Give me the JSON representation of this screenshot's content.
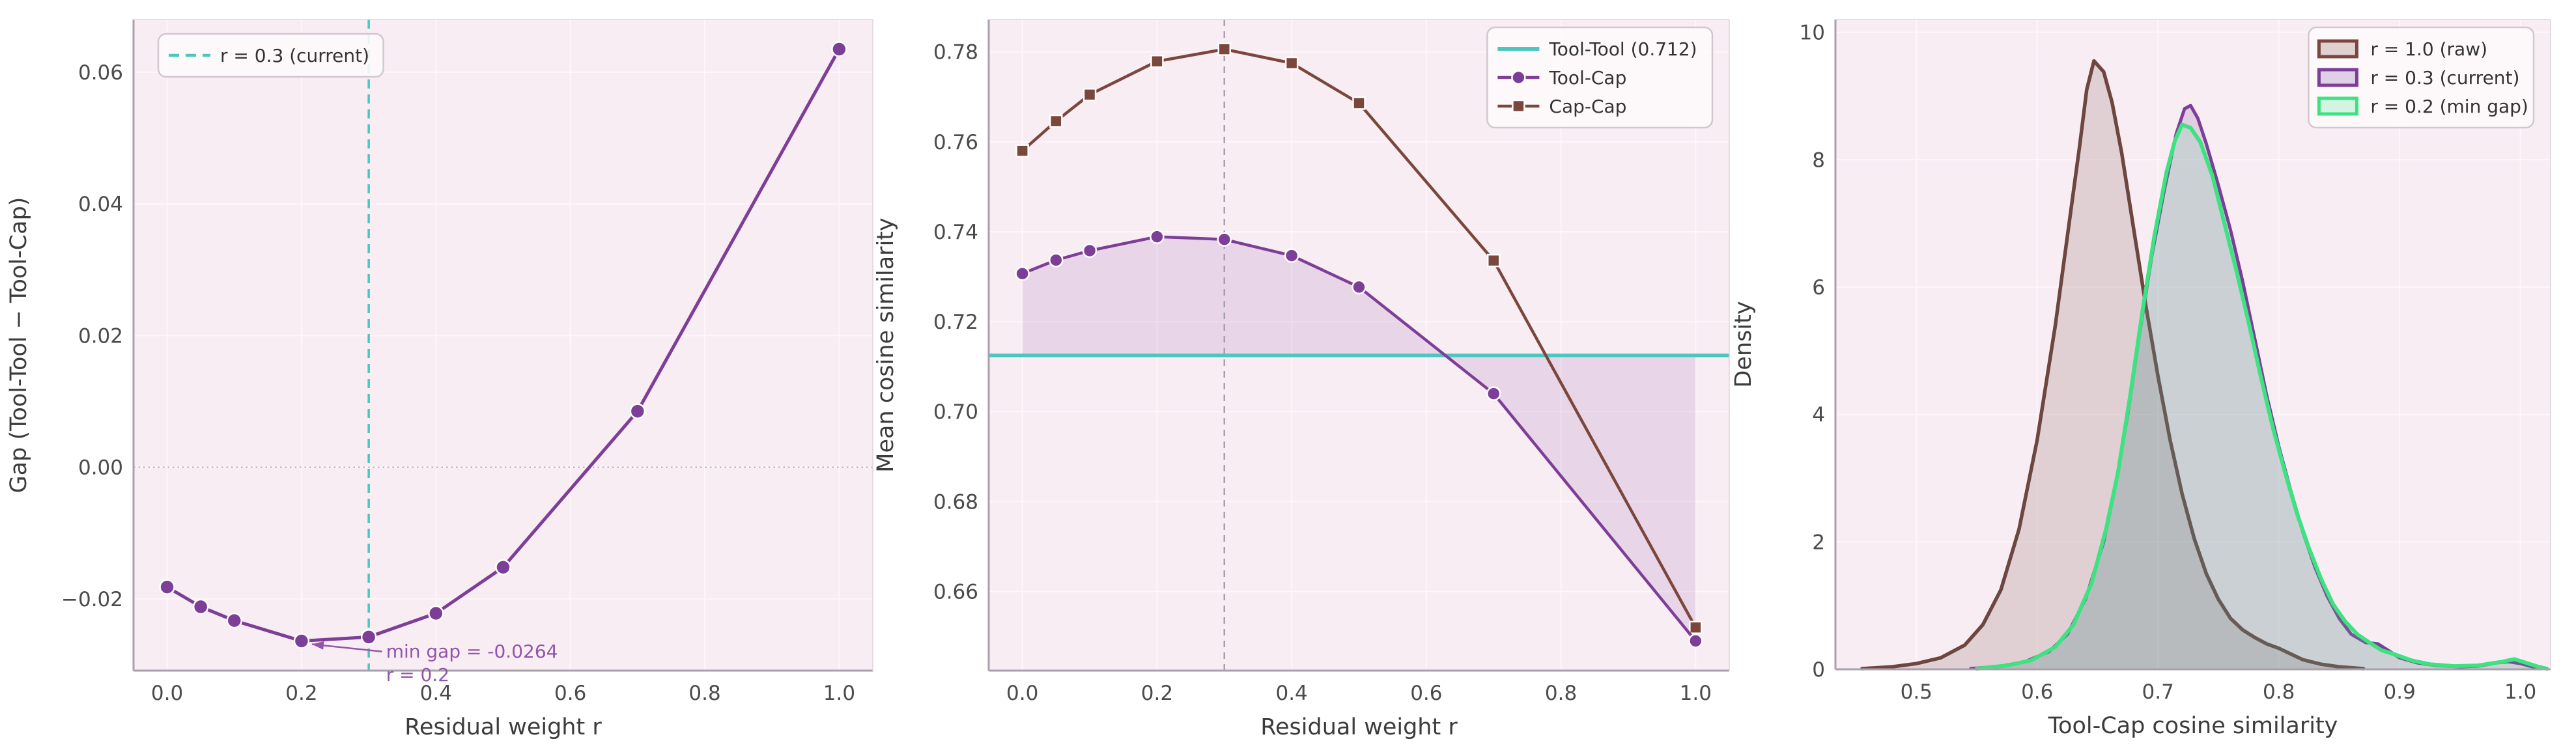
{
  "figure": {
    "background": "#ffffff",
    "plot_background": "#f9edf4",
    "grid_color": "#fdf6fa",
    "spine_dark": "#a8a0ac",
    "spine_light": "#ddd3dd",
    "tick_color": "#4b4b4b",
    "label_color": "#3c3c3c",
    "legend_bg": "#fdfafc",
    "legend_border": "#cfc8cf"
  },
  "colors": {
    "teal": "#4cc6bf",
    "purple": "#7d3e97",
    "brown": "#7b463b",
    "brown_kde": "#6d463f",
    "green": "#3ce380",
    "gray_dash": "#a79fa9",
    "zero_dotted": "#b3aab3",
    "annotation_purple": "#9355a8"
  },
  "chart_data": [
    {
      "type": "line",
      "name": "gap-vs-residual-weight",
      "xlabel": "Residual weight r",
      "ylabel": "Gap (Tool-Tool − Tool-Cap)",
      "xlim": [
        -0.05,
        1.05
      ],
      "ylim": [
        -0.0309,
        0.068
      ],
      "xticks": {
        "values": [
          0.0,
          0.2,
          0.4,
          0.6,
          0.8,
          1.0
        ],
        "labels": [
          "0.0",
          "0.2",
          "0.4",
          "0.6",
          "0.8",
          "1.0"
        ]
      },
      "yticks": {
        "values": [
          -0.02,
          0.0,
          0.02,
          0.04,
          0.06
        ],
        "labels": [
          "−0.02",
          "0.00",
          "0.02",
          "0.04",
          "0.06"
        ]
      },
      "grid": true,
      "zero_line": true,
      "vlines": [
        {
          "x": 0.3,
          "color": "#4cc6bf",
          "width": 3.5,
          "dash": "14 9"
        }
      ],
      "series": [
        {
          "id": "gap",
          "color": "#7d3e97",
          "marker": "circle",
          "marker_r": 11,
          "line_width": 5,
          "x": [
            0.0,
            0.05,
            0.1,
            0.2,
            0.3,
            0.4,
            0.5,
            0.7,
            1.0
          ],
          "y": [
            -0.0182,
            -0.0212,
            -0.0233,
            -0.0264,
            -0.0258,
            -0.0222,
            -0.0152,
            0.0085,
            0.0635
          ]
        }
      ],
      "legend": {
        "pos": "ul",
        "items": [
          {
            "kind": "dash",
            "color": "#4cc6bf",
            "label": "r = 0.3 (current)"
          }
        ]
      },
      "annotation": {
        "text_lines": [
          "min gap = -0.0264",
          "r = 0.2"
        ],
        "x": 0.318,
        "y": -0.0289,
        "target": {
          "x": 0.2,
          "y": -0.0264
        },
        "color": "#9355a8"
      }
    },
    {
      "type": "line",
      "name": "mean-cosine-similarity-vs-residual-weight",
      "xlabel": "Residual weight r",
      "ylabel": "Mean cosine similarity",
      "xlim": [
        -0.05,
        1.05
      ],
      "ylim": [
        0.6424,
        0.7872
      ],
      "xticks": {
        "values": [
          0.0,
          0.2,
          0.4,
          0.6,
          0.8,
          1.0
        ],
        "labels": [
          "0.0",
          "0.2",
          "0.4",
          "0.6",
          "0.8",
          "1.0"
        ]
      },
      "yticks": {
        "values": [
          0.66,
          0.68,
          0.7,
          0.72,
          0.74,
          0.76,
          0.78
        ],
        "labels": [
          "0.66",
          "0.68",
          "0.70",
          "0.72",
          "0.74",
          "0.76",
          "0.78"
        ]
      },
      "grid": true,
      "hline": {
        "y": 0.7125,
        "color": "#4cc6bf",
        "width": 5.5,
        "label": "Tool-Tool (0.712)"
      },
      "vlines": [
        {
          "x": 0.3,
          "color": "#a79fa9",
          "width": 2.5,
          "dash": "10 8"
        }
      ],
      "fill_between": {
        "series": "toolcap",
        "to": 0.7125,
        "color": "#7d3e97",
        "opacity": 0.13
      },
      "series": [
        {
          "id": "capcap",
          "label": "Cap-Cap",
          "color": "#7b463b",
          "marker": "square",
          "marker_r": 9,
          "line_width": 4.5,
          "x": [
            0.0,
            0.05,
            0.1,
            0.2,
            0.3,
            0.4,
            0.5,
            0.7,
            1.0
          ],
          "y": [
            0.758,
            0.7646,
            0.7705,
            0.7779,
            0.7806,
            0.7775,
            0.7686,
            0.7336,
            0.652
          ]
        },
        {
          "id": "toolcap",
          "label": "Tool-Cap",
          "color": "#7d3e97",
          "marker": "circle",
          "marker_r": 10,
          "line_width": 4.5,
          "x": [
            0.0,
            0.05,
            0.1,
            0.2,
            0.3,
            0.4,
            0.5,
            0.7,
            1.0
          ],
          "y": [
            0.7307,
            0.7337,
            0.7358,
            0.7389,
            0.7383,
            0.7347,
            0.7277,
            0.704,
            0.649
          ]
        }
      ],
      "legend": {
        "pos": "ur",
        "items": [
          {
            "kind": "line",
            "color": "#4cc6bf",
            "label": "Tool-Tool (0.712)"
          },
          {
            "kind": "line-circle",
            "color": "#7d3e97",
            "label": "Tool-Cap"
          },
          {
            "kind": "line-square",
            "color": "#7b463b",
            "label": "Cap-Cap"
          }
        ]
      }
    },
    {
      "type": "area",
      "name": "tool-cap-similarity-density",
      "xlabel": "Tool-Cap cosine similarity",
      "ylabel": "Density",
      "xlim": [
        0.433,
        1.025
      ],
      "ylim": [
        0,
        10.2
      ],
      "xticks": {
        "values": [
          0.5,
          0.6,
          0.7,
          0.8,
          0.9,
          1.0
        ],
        "labels": [
          "0.5",
          "0.6",
          "0.7",
          "0.8",
          "0.9",
          "1.0"
        ]
      },
      "yticks": {
        "values": [
          0,
          2,
          4,
          6,
          8,
          10
        ],
        "labels": [
          "0",
          "2",
          "4",
          "6",
          "8",
          "10"
        ]
      },
      "grid": true,
      "kde": [
        {
          "label": "r = 1.0 (raw)",
          "color": "#6d463f",
          "stroke_width": 5.5,
          "fill_opacity": 0.18,
          "points": [
            [
              0.455,
              0.01
            ],
            [
              0.48,
              0.04
            ],
            [
              0.5,
              0.09
            ],
            [
              0.52,
              0.18
            ],
            [
              0.54,
              0.38
            ],
            [
              0.555,
              0.7
            ],
            [
              0.57,
              1.25
            ],
            [
              0.585,
              2.2
            ],
            [
              0.6,
              3.6
            ],
            [
              0.615,
              5.4
            ],
            [
              0.625,
              6.8
            ],
            [
              0.635,
              8.2
            ],
            [
              0.641,
              9.1
            ],
            [
              0.647,
              9.55
            ],
            [
              0.655,
              9.38
            ],
            [
              0.662,
              8.9
            ],
            [
              0.67,
              8.1
            ],
            [
              0.68,
              6.9
            ],
            [
              0.69,
              5.7
            ],
            [
              0.7,
              4.6
            ],
            [
              0.71,
              3.6
            ],
            [
              0.72,
              2.75
            ],
            [
              0.73,
              2.05
            ],
            [
              0.74,
              1.5
            ],
            [
              0.75,
              1.1
            ],
            [
              0.76,
              0.8
            ],
            [
              0.77,
              0.62
            ],
            [
              0.78,
              0.5
            ],
            [
              0.79,
              0.4
            ],
            [
              0.8,
              0.33
            ],
            [
              0.81,
              0.24
            ],
            [
              0.82,
              0.15
            ],
            [
              0.835,
              0.08
            ],
            [
              0.85,
              0.04
            ],
            [
              0.87,
              0.01
            ]
          ]
        },
        {
          "label": "r = 0.3 (current)",
          "color": "#7d3e97",
          "stroke_width": 5,
          "fill_opacity": 0.18,
          "points": [
            [
              0.545,
              0.01
            ],
            [
              0.57,
              0.05
            ],
            [
              0.59,
              0.12
            ],
            [
              0.61,
              0.28
            ],
            [
              0.625,
              0.55
            ],
            [
              0.64,
              1.1
            ],
            [
              0.655,
              2.0
            ],
            [
              0.665,
              2.9
            ],
            [
              0.675,
              4.0
            ],
            [
              0.685,
              5.3
            ],
            [
              0.695,
              6.5
            ],
            [
              0.705,
              7.5
            ],
            [
              0.715,
              8.4
            ],
            [
              0.722,
              8.8
            ],
            [
              0.727,
              8.85
            ],
            [
              0.733,
              8.65
            ],
            [
              0.74,
              8.25
            ],
            [
              0.75,
              7.6
            ],
            [
              0.76,
              6.9
            ],
            [
              0.77,
              6.1
            ],
            [
              0.78,
              5.2
            ],
            [
              0.79,
              4.3
            ],
            [
              0.8,
              3.5
            ],
            [
              0.81,
              2.8
            ],
            [
              0.82,
              2.15
            ],
            [
              0.83,
              1.6
            ],
            [
              0.84,
              1.15
            ],
            [
              0.85,
              0.8
            ],
            [
              0.86,
              0.55
            ],
            [
              0.872,
              0.42
            ],
            [
              0.882,
              0.4
            ],
            [
              0.892,
              0.28
            ],
            [
              0.9,
              0.18
            ],
            [
              0.915,
              0.1
            ],
            [
              0.93,
              0.06
            ],
            [
              0.95,
              0.04
            ],
            [
              0.965,
              0.05
            ],
            [
              0.98,
              0.1
            ],
            [
              0.99,
              0.12
            ],
            [
              1.0,
              0.09
            ],
            [
              1.01,
              0.04
            ],
            [
              1.02,
              0.01
            ]
          ]
        },
        {
          "label": "r = 0.2 (min gap)",
          "color": "#3ce380",
          "stroke_width": 6,
          "fill_opacity": 0.15,
          "points": [
            [
              0.55,
              0.01
            ],
            [
              0.575,
              0.06
            ],
            [
              0.595,
              0.14
            ],
            [
              0.615,
              0.35
            ],
            [
              0.63,
              0.7
            ],
            [
              0.645,
              1.35
            ],
            [
              0.657,
              2.2
            ],
            [
              0.667,
              3.1
            ],
            [
              0.677,
              4.3
            ],
            [
              0.687,
              5.6
            ],
            [
              0.697,
              6.8
            ],
            [
              0.707,
              7.8
            ],
            [
              0.714,
              8.3
            ],
            [
              0.72,
              8.55
            ],
            [
              0.727,
              8.5
            ],
            [
              0.735,
              8.28
            ],
            [
              0.745,
              7.75
            ],
            [
              0.755,
              7.0
            ],
            [
              0.765,
              6.25
            ],
            [
              0.775,
              5.45
            ],
            [
              0.785,
              4.6
            ],
            [
              0.795,
              3.8
            ],
            [
              0.805,
              3.1
            ],
            [
              0.815,
              2.45
            ],
            [
              0.825,
              1.9
            ],
            [
              0.835,
              1.42
            ],
            [
              0.845,
              1.02
            ],
            [
              0.855,
              0.75
            ],
            [
              0.865,
              0.55
            ],
            [
              0.875,
              0.42
            ],
            [
              0.885,
              0.3
            ],
            [
              0.895,
              0.24
            ],
            [
              0.91,
              0.14
            ],
            [
              0.925,
              0.08
            ],
            [
              0.945,
              0.05
            ],
            [
              0.965,
              0.06
            ],
            [
              0.985,
              0.12
            ],
            [
              0.995,
              0.16
            ],
            [
              1.005,
              0.1
            ],
            [
              1.015,
              0.04
            ],
            [
              1.022,
              0.01
            ]
          ]
        }
      ],
      "legend": {
        "pos": "ur",
        "items": [
          {
            "kind": "patch",
            "color": "#7b463b",
            "label": "r = 1.0 (raw)"
          },
          {
            "kind": "patch",
            "color": "#7d3e97",
            "label": "r = 0.3 (current)"
          },
          {
            "kind": "patch",
            "color": "#3ce380",
            "label": "r = 0.2 (min gap)"
          }
        ]
      }
    }
  ]
}
